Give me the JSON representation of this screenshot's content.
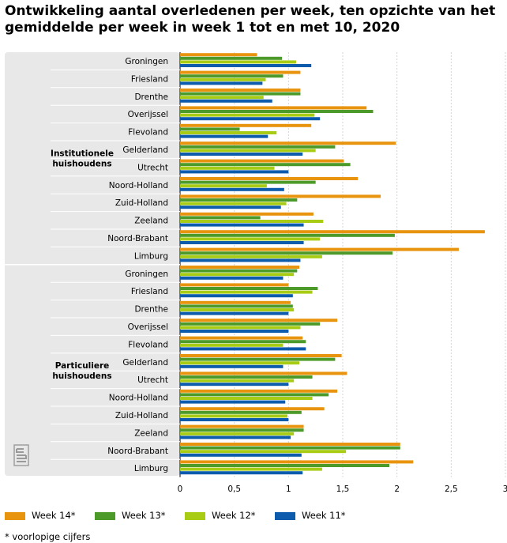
{
  "title": "Ontwikkeling aantal overledenen per week, ten opzichte van het gemiddelde per week in week 1 tot en met 10, 2020",
  "footnote": "* voorlopige cijfers",
  "colors": {
    "week14": "#e8940e",
    "week13": "#4c9a2a",
    "week12": "#a8cc14",
    "week11": "#0c5bac",
    "panel": "#e8e8e8",
    "grid": "#d6d6d6"
  },
  "logo_text": "cbs",
  "chart_data": {
    "type": "bar",
    "orientation": "horizontal",
    "title": "Ontwikkeling aantal overledenen per week, ten opzichte van het gemiddelde per week in week 1 tot en met 10, 2020",
    "xlim": [
      0,
      3
    ],
    "xticks": [
      "0",
      "0,5",
      "1",
      "1,5",
      "2",
      "2,5",
      "3"
    ],
    "xtick_values": [
      0,
      0.5,
      1,
      1.5,
      2,
      2.5,
      3
    ],
    "grid": true,
    "legend_position": "bottom",
    "groups": [
      {
        "label": "Institutionele huishoudens",
        "label_lines": [
          "Institutionele",
          "huishoudens"
        ],
        "categories": [
          {
            "name": "Groningen",
            "values": [
              0.71,
              0.94,
              1.07,
              1.21
            ]
          },
          {
            "name": "Friesland",
            "values": [
              1.11,
              0.95,
              0.79,
              0.76
            ]
          },
          {
            "name": "Drenthe",
            "values": [
              1.11,
              1.11,
              0.77,
              0.85
            ]
          },
          {
            "name": "Overijssel",
            "values": [
              1.72,
              1.78,
              1.24,
              1.29
            ]
          },
          {
            "name": "Flevoland",
            "values": [
              1.21,
              0.55,
              0.89,
              0.81
            ]
          },
          {
            "name": "Gelderland",
            "values": [
              1.99,
              1.43,
              1.25,
              1.13
            ]
          },
          {
            "name": "Utrecht",
            "values": [
              1.51,
              1.57,
              0.87,
              1.0
            ]
          },
          {
            "name": "Noord-Holland",
            "values": [
              1.64,
              1.25,
              0.8,
              0.96
            ]
          },
          {
            "name": "Zuid-Holland",
            "values": [
              1.85,
              1.08,
              0.98,
              0.93
            ]
          },
          {
            "name": "Zeeland",
            "values": [
              1.23,
              0.74,
              1.32,
              1.14
            ]
          },
          {
            "name": "Noord-Brabant",
            "values": [
              2.81,
              1.98,
              1.29,
              1.14
            ]
          },
          {
            "name": "Limburg",
            "values": [
              2.57,
              1.96,
              1.31,
              1.11
            ]
          }
        ]
      },
      {
        "label": "Particuliere huishoudens",
        "label_lines": [
          "Particuliere",
          "huishoudens"
        ],
        "categories": [
          {
            "name": "Groningen",
            "values": [
              1.1,
              1.08,
              1.05,
              0.95
            ]
          },
          {
            "name": "Friesland",
            "values": [
              1.0,
              1.27,
              1.22,
              1.04
            ]
          },
          {
            "name": "Drenthe",
            "values": [
              1.02,
              1.04,
              1.05,
              1.0
            ]
          },
          {
            "name": "Overijssel",
            "values": [
              1.45,
              1.29,
              1.11,
              1.0
            ]
          },
          {
            "name": "Flevoland",
            "values": [
              1.13,
              1.16,
              0.95,
              1.16
            ]
          },
          {
            "name": "Gelderland",
            "values": [
              1.49,
              1.43,
              1.1,
              0.95
            ]
          },
          {
            "name": "Utrecht",
            "values": [
              1.54,
              1.22,
              1.05,
              1.0
            ]
          },
          {
            "name": "Noord-Holland",
            "values": [
              1.45,
              1.37,
              1.22,
              0.97
            ]
          },
          {
            "name": "Zuid-Holland",
            "values": [
              1.33,
              1.12,
              0.99,
              1.0
            ]
          },
          {
            "name": "Zeeland",
            "values": [
              1.14,
              1.14,
              1.05,
              1.02
            ]
          },
          {
            "name": "Noord-Brabant",
            "values": [
              2.03,
              2.03,
              1.53,
              1.12
            ]
          },
          {
            "name": "Limburg",
            "values": [
              2.15,
              1.93,
              1.31,
              1.13
            ]
          }
        ]
      }
    ],
    "series": [
      {
        "name": "Week 14*",
        "key": "week14"
      },
      {
        "name": "Week 13*",
        "key": "week13"
      },
      {
        "name": "Week 12*",
        "key": "week12"
      },
      {
        "name": "Week 11*",
        "key": "week11"
      }
    ]
  }
}
